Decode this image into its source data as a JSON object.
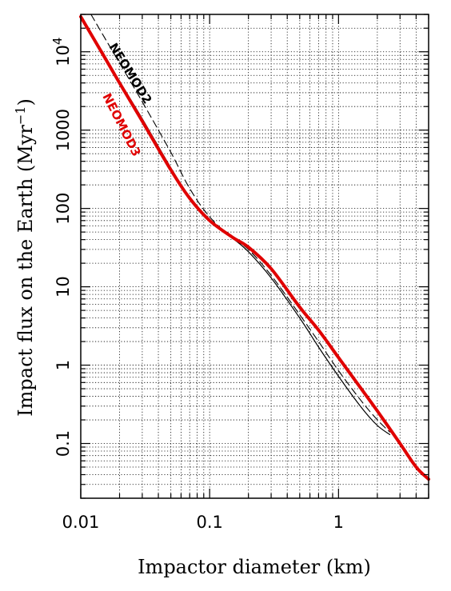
{
  "chart_data": {
    "type": "line",
    "xlabel": "Impactor diameter (km)",
    "ylabel_text": "Impact flux on the Earth (Myr",
    "ylabel_sup": "−1",
    "ylabel_close": ")",
    "x_scale": "log",
    "y_scale": "log",
    "xlim": [
      0.01,
      5
    ],
    "ylim": [
      0.02,
      30000
    ],
    "grid": true,
    "x_ticks": [
      {
        "value": 0.01,
        "label": "0.01"
      },
      {
        "value": 0.1,
        "label": "0.1"
      },
      {
        "value": 1,
        "label": "1"
      }
    ],
    "y_ticks": [
      {
        "value": 0.1,
        "label": "0.1"
      },
      {
        "value": 1,
        "label": "1"
      },
      {
        "value": 10,
        "label": "10"
      },
      {
        "value": 100,
        "label": "100"
      },
      {
        "value": 1000,
        "label": "1000"
      },
      {
        "value": 10000,
        "label": "10",
        "sup": "4"
      }
    ],
    "series": [
      {
        "name": "NEOMOD2",
        "color": "#000000",
        "style": "solid-thin",
        "x": [
          0.01,
          0.015,
          0.02,
          0.03,
          0.05,
          0.07,
          0.1,
          0.15,
          0.2,
          0.3,
          0.5,
          0.7,
          1.0,
          1.5,
          2.0,
          2.5
        ],
        "y": [
          28000,
          9500,
          4200,
          1400,
          330,
          140,
          70,
          42,
          28,
          13,
          4.0,
          1.7,
          0.72,
          0.29,
          0.17,
          0.13
        ]
      },
      {
        "name": "",
        "color": "#000000",
        "style": "dashed",
        "x": [
          0.012,
          0.015,
          0.02,
          0.03,
          0.05,
          0.07,
          0.1,
          0.15,
          0.2,
          0.3,
          0.5,
          0.7,
          1.0,
          1.5,
          2.0,
          2.5
        ],
        "y": [
          30000,
          16000,
          7200,
          2300,
          520,
          180,
          78,
          42,
          30,
          14,
          4.4,
          2.0,
          0.85,
          0.35,
          0.2,
          0.14
        ]
      },
      {
        "name": "NEOMOD3",
        "color": "#e00000",
        "style": "solid-thick",
        "x": [
          0.01,
          0.015,
          0.02,
          0.03,
          0.05,
          0.07,
          0.1,
          0.15,
          0.2,
          0.3,
          0.5,
          0.7,
          1.0,
          1.5,
          2.0,
          3.0,
          4.0,
          5.0
        ],
        "y": [
          28000,
          9000,
          4000,
          1300,
          310,
          135,
          70,
          43,
          32,
          17,
          5.5,
          2.8,
          1.25,
          0.5,
          0.26,
          0.1,
          0.05,
          0.035
        ]
      }
    ]
  }
}
